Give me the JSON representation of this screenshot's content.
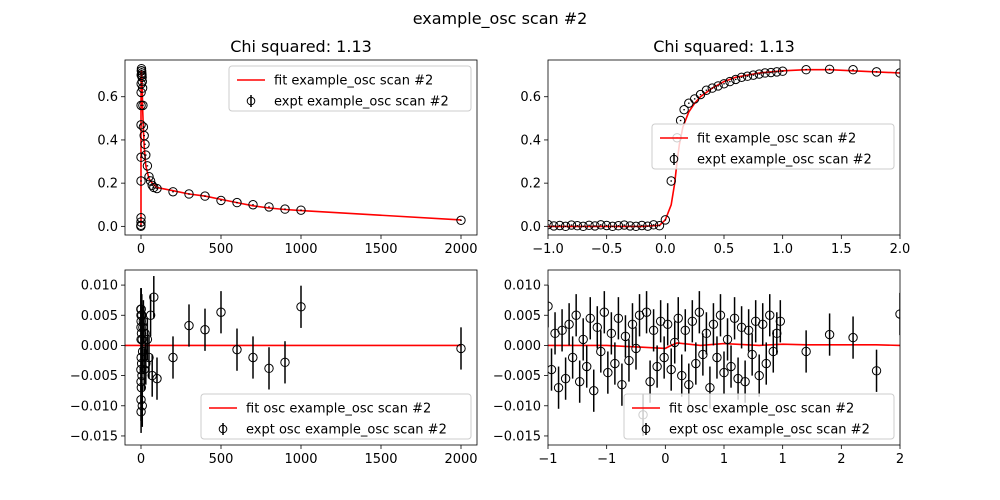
{
  "figure": {
    "title": "example_osc scan #2"
  },
  "chart_data": [
    {
      "id": "p1",
      "type": "line+errorbar",
      "title": "Chi squared:  1.13",
      "xlim": [
        -100,
        2100
      ],
      "ylim": [
        -0.04,
        0.77
      ],
      "xticks": [
        0,
        500,
        1000,
        1500,
        2000
      ],
      "yticks": [
        0.0,
        0.2,
        0.4,
        0.6
      ],
      "tick_decimals": 1,
      "legend_position": "top-right",
      "series": [
        {
          "name": "fit example_osc scan #2",
          "kind": "line",
          "color": "#ff0000",
          "x": [
            -1,
            -0.6,
            -0.3,
            0,
            0.05,
            0.1,
            0.2,
            0.3,
            0.5,
            0.7,
            1,
            2,
            3,
            5,
            8,
            10,
            15,
            20,
            30,
            50,
            70,
            100,
            200,
            300,
            400,
            500,
            600,
            700,
            800,
            900,
            1000,
            2000
          ],
          "y": [
            0.0,
            0.0,
            0.0,
            0.05,
            0.2,
            0.4,
            0.52,
            0.56,
            0.63,
            0.67,
            0.7,
            0.72,
            0.72,
            0.7,
            0.62,
            0.55,
            0.45,
            0.37,
            0.28,
            0.22,
            0.2,
            0.18,
            0.165,
            0.15,
            0.14,
            0.125,
            0.11,
            0.095,
            0.085,
            0.078,
            0.073,
            0.03
          ]
        },
        {
          "name": "expt example_osc scan #2",
          "kind": "errorbar",
          "color": "#000000",
          "x": [
            -1,
            -0.5,
            0,
            0.05,
            0.1,
            0.2,
            0.3,
            0.5,
            0.7,
            1,
            1.5,
            2,
            3,
            4,
            5,
            6,
            7,
            8,
            10,
            12,
            15,
            20,
            25,
            30,
            40,
            50,
            60,
            70,
            80,
            100,
            200,
            300,
            400,
            500,
            600,
            700,
            800,
            900,
            1000,
            2000
          ],
          "y": [
            0.0,
            0.005,
            0.02,
            0.04,
            0.21,
            0.32,
            0.47,
            0.56,
            0.62,
            0.66,
            0.7,
            0.72,
            0.73,
            0.72,
            0.71,
            0.7,
            0.69,
            0.67,
            0.64,
            0.56,
            0.46,
            0.42,
            0.38,
            0.33,
            0.28,
            0.23,
            0.21,
            0.19,
            0.18,
            0.175,
            0.16,
            0.15,
            0.14,
            0.12,
            0.11,
            0.1,
            0.09,
            0.08,
            0.075,
            0.028
          ],
          "err": [
            0.003,
            0.003,
            0.003,
            0.003,
            0.003,
            0.003,
            0.003,
            0.003,
            0.003,
            0.003,
            0.003,
            0.003,
            0.003,
            0.003,
            0.003,
            0.003,
            0.003,
            0.003,
            0.003,
            0.003,
            0.003,
            0.003,
            0.003,
            0.003,
            0.003,
            0.003,
            0.003,
            0.003,
            0.003,
            0.003,
            0.003,
            0.003,
            0.003,
            0.003,
            0.003,
            0.003,
            0.003,
            0.003,
            0.003,
            0.003
          ]
        }
      ]
    },
    {
      "id": "p2",
      "type": "line+errorbar",
      "title": "Chi squared:  1.13",
      "xlim": [
        -1.0,
        2.0
      ],
      "ylim": [
        -0.04,
        0.77
      ],
      "xticks": [
        -1.0,
        -0.5,
        0.0,
        0.5,
        1.0,
        1.5,
        2.0
      ],
      "yticks": [
        0.0,
        0.2,
        0.4,
        0.6
      ],
      "tick_decimals": 1,
      "legend_position": "center-right",
      "series": [
        {
          "name": "fit example_osc scan #2",
          "kind": "line",
          "color": "#ff0000",
          "x": [
            -1.0,
            -0.5,
            -0.2,
            -0.05,
            0.0,
            0.05,
            0.08,
            0.1,
            0.12,
            0.15,
            0.2,
            0.25,
            0.3,
            0.4,
            0.5,
            0.6,
            0.7,
            0.8,
            0.9,
            1.0,
            1.2,
            1.4,
            1.6,
            1.8,
            2.0
          ],
          "y": [
            0.0,
            0.0,
            0.0,
            0.005,
            0.03,
            0.1,
            0.2,
            0.3,
            0.38,
            0.46,
            0.53,
            0.57,
            0.6,
            0.64,
            0.67,
            0.69,
            0.7,
            0.71,
            0.715,
            0.72,
            0.725,
            0.725,
            0.72,
            0.715,
            0.71
          ]
        },
        {
          "name": "expt example_osc scan #2",
          "kind": "errorbar",
          "color": "#000000",
          "x": [
            -1.0,
            -0.95,
            -0.9,
            -0.85,
            -0.8,
            -0.75,
            -0.7,
            -0.65,
            -0.6,
            -0.55,
            -0.5,
            -0.45,
            -0.4,
            -0.35,
            -0.3,
            -0.25,
            -0.2,
            -0.15,
            -0.1,
            -0.05,
            0.0,
            0.05,
            0.1,
            0.13,
            0.16,
            0.2,
            0.25,
            0.3,
            0.35,
            0.4,
            0.45,
            0.5,
            0.55,
            0.6,
            0.65,
            0.7,
            0.75,
            0.8,
            0.85,
            0.9,
            0.95,
            1.0,
            1.2,
            1.4,
            1.6,
            1.8,
            2.0
          ],
          "y": [
            0.008,
            0.002,
            0.004,
            0.0,
            0.006,
            0.003,
            0.0,
            0.005,
            0.002,
            0.007,
            0.004,
            0.0,
            0.003,
            0.006,
            0.002,
            0.0,
            0.004,
            0.001,
            0.007,
            0.003,
            0.03,
            0.21,
            0.41,
            0.49,
            0.54,
            0.57,
            0.59,
            0.61,
            0.63,
            0.64,
            0.65,
            0.66,
            0.67,
            0.68,
            0.69,
            0.695,
            0.7,
            0.705,
            0.71,
            0.712,
            0.715,
            0.718,
            0.725,
            0.727,
            0.725,
            0.715,
            0.71
          ],
          "err": [
            0.003,
            0.003,
            0.003,
            0.003,
            0.003,
            0.003,
            0.003,
            0.003,
            0.003,
            0.003,
            0.003,
            0.003,
            0.003,
            0.003,
            0.003,
            0.003,
            0.003,
            0.003,
            0.003,
            0.003,
            0.003,
            0.003,
            0.003,
            0.003,
            0.003,
            0.003,
            0.003,
            0.003,
            0.003,
            0.003,
            0.003,
            0.003,
            0.003,
            0.003,
            0.003,
            0.003,
            0.003,
            0.003,
            0.003,
            0.003,
            0.003,
            0.003,
            0.003,
            0.003,
            0.003,
            0.003,
            0.003
          ]
        }
      ]
    },
    {
      "id": "p3",
      "type": "line+errorbar",
      "title": "",
      "xlim": [
        -100,
        2100
      ],
      "ylim": [
        -0.0165,
        0.0125
      ],
      "xticks": [
        0,
        500,
        1000,
        1500,
        2000
      ],
      "yticks": [
        -0.015,
        -0.01,
        -0.005,
        0.0,
        0.005,
        0.01
      ],
      "tick_decimals": 3,
      "legend_position": "bottom-right",
      "series": [
        {
          "name": "fit osc example_osc scan #2",
          "kind": "line",
          "color": "#ff0000",
          "x": [
            -100,
            2000
          ],
          "y": [
            0.0,
            0.0
          ]
        },
        {
          "name": "expt osc example_osc scan #2",
          "kind": "errorbar",
          "color": "#000000",
          "x": [
            -1,
            -0.5,
            0,
            0.05,
            0.1,
            0.2,
            0.3,
            0.5,
            0.7,
            1,
            1.5,
            2,
            3,
            4,
            5,
            6,
            7,
            8,
            10,
            12,
            15,
            20,
            25,
            30,
            40,
            50,
            60,
            70,
            80,
            100,
            200,
            300,
            400,
            500,
            600,
            700,
            800,
            900,
            1000,
            2000
          ],
          "y": [
            0.006,
            -0.004,
            0.003,
            -0.009,
            0.005,
            -0.006,
            0.001,
            -0.011,
            0.004,
            -0.002,
            0.006,
            -0.007,
            0.002,
            -0.003,
            0.005,
            -0.005,
            0.001,
            -0.01,
            -0.001,
            0.003,
            0.004,
            -0.004,
            0.002,
            -0.003,
            0.001,
            -0.002,
            0.005,
            -0.005,
            0.008,
            -0.0055,
            -0.002,
            0.0033,
            0.0026,
            0.0055,
            -0.0007,
            -0.002,
            -0.0038,
            -0.0028,
            0.0064,
            -0.0005
          ],
          "err": [
            0.0035,
            0.0035,
            0.0035,
            0.0035,
            0.0035,
            0.0035,
            0.0035,
            0.0035,
            0.0035,
            0.0035,
            0.0035,
            0.0035,
            0.0035,
            0.0035,
            0.0035,
            0.0035,
            0.0035,
            0.0035,
            0.0035,
            0.0035,
            0.0035,
            0.0035,
            0.0035,
            0.0035,
            0.0035,
            0.0035,
            0.0035,
            0.0035,
            0.0035,
            0.0035,
            0.0035,
            0.0035,
            0.0035,
            0.0035,
            0.0035,
            0.0035,
            0.0035,
            0.0035,
            0.0035,
            0.0035
          ]
        }
      ]
    },
    {
      "id": "p4",
      "type": "line+errorbar",
      "title": "",
      "xlim": [
        -1.0,
        2.0
      ],
      "ylim": [
        -0.0165,
        0.0125
      ],
      "xticks": [
        -1.0,
        -0.5,
        0.0,
        0.5,
        1.0,
        1.5,
        2.0
      ],
      "yticks": [
        -0.015,
        -0.01,
        -0.005,
        0.0,
        0.005,
        0.01
      ],
      "tick_decimals": 3,
      "legend_position": "bottom-right",
      "series": [
        {
          "name": "fit osc example_osc scan #2",
          "kind": "line",
          "color": "#ff0000",
          "x": [
            -1.0,
            -0.5,
            -0.2,
            0.0,
            0.05,
            0.1,
            0.2,
            0.3,
            0.5,
            0.8,
            1.0,
            1.2,
            1.5,
            1.8,
            2.0
          ],
          "y": [
            0.0,
            0.0,
            -0.0003,
            -0.0005,
            0.0,
            0.0004,
            0.0002,
            0.0,
            0.0003,
            0.0,
            0.0002,
            0.0001,
            0.0001,
            0.0001,
            0.0
          ]
        },
        {
          "name": "expt osc example_osc scan #2",
          "kind": "errorbar",
          "color": "#000000",
          "x": [
            -1.0,
            -0.97,
            -0.94,
            -0.91,
            -0.88,
            -0.85,
            -0.82,
            -0.79,
            -0.76,
            -0.73,
            -0.7,
            -0.67,
            -0.64,
            -0.61,
            -0.58,
            -0.55,
            -0.52,
            -0.49,
            -0.46,
            -0.43,
            -0.4,
            -0.37,
            -0.34,
            -0.31,
            -0.28,
            -0.25,
            -0.22,
            -0.19,
            -0.16,
            -0.13,
            -0.1,
            -0.07,
            -0.04,
            -0.01,
            0.02,
            0.05,
            0.08,
            0.11,
            0.14,
            0.17,
            0.2,
            0.23,
            0.26,
            0.29,
            0.32,
            0.35,
            0.38,
            0.41,
            0.44,
            0.47,
            0.5,
            0.53,
            0.56,
            0.59,
            0.62,
            0.65,
            0.68,
            0.71,
            0.74,
            0.77,
            0.8,
            0.83,
            0.86,
            0.89,
            0.92,
            0.95,
            0.98,
            1.2,
            1.4,
            1.6,
            1.8,
            2.0
          ],
          "y": [
            0.0065,
            -0.004,
            0.002,
            -0.007,
            0.0025,
            -0.0055,
            0.0035,
            -0.002,
            0.005,
            -0.006,
            0.001,
            -0.0035,
            0.0045,
            -0.0075,
            0.003,
            -0.001,
            0.0055,
            -0.0045,
            0.002,
            -0.003,
            0.0045,
            -0.0065,
            0.0015,
            -0.0025,
            0.0035,
            -0.0005,
            0.005,
            -0.0115,
            0.0055,
            -0.006,
            0.0025,
            -0.0035,
            0.004,
            -0.002,
            0.0035,
            -0.004,
            0.0005,
            0.0045,
            -0.005,
            0.0025,
            -0.0065,
            0.004,
            -0.003,
            0.0055,
            -0.0015,
            0.002,
            -0.007,
            0.0035,
            -0.002,
            0.005,
            -0.0045,
            0.001,
            -0.0035,
            0.0045,
            -0.0055,
            0.003,
            -0.006,
            0.0025,
            -0.0015,
            0.004,
            -0.005,
            0.0035,
            -0.003,
            0.005,
            -0.001,
            0.002,
            0.004,
            -0.001,
            0.0018,
            0.0013,
            -0.0042,
            0.0052
          ],
          "err": [
            0.0035,
            0.0035,
            0.0035,
            0.0035,
            0.0035,
            0.0035,
            0.0035,
            0.0035,
            0.0035,
            0.0035,
            0.0035,
            0.0035,
            0.0035,
            0.0035,
            0.0035,
            0.0035,
            0.0035,
            0.0035,
            0.0035,
            0.0035,
            0.0035,
            0.0035,
            0.0035,
            0.0035,
            0.0035,
            0.0035,
            0.0035,
            0.0035,
            0.0035,
            0.0035,
            0.0035,
            0.0035,
            0.0035,
            0.0035,
            0.0035,
            0.0035,
            0.0035,
            0.0035,
            0.0035,
            0.0035,
            0.0035,
            0.0035,
            0.0035,
            0.0035,
            0.0035,
            0.0035,
            0.0035,
            0.0035,
            0.0035,
            0.0035,
            0.0035,
            0.0035,
            0.0035,
            0.0035,
            0.0035,
            0.0035,
            0.0035,
            0.0035,
            0.0035,
            0.0035,
            0.0035,
            0.0035,
            0.0035,
            0.0035,
            0.0035,
            0.0035,
            0.0035,
            0.0035,
            0.0035,
            0.0035,
            0.0035,
            0.0035
          ]
        }
      ]
    }
  ]
}
